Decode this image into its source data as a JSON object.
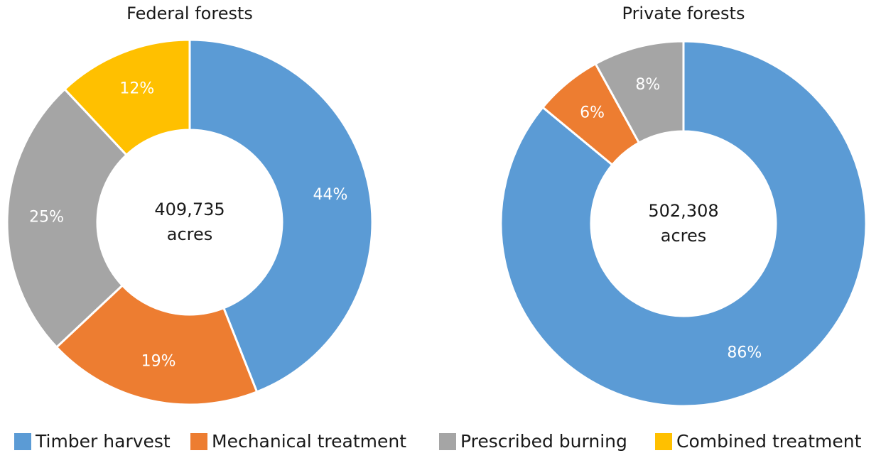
{
  "chart_data": [
    {
      "type": "pie",
      "title": "Federal forests",
      "center_text": "409,735",
      "center_unit": "acres",
      "categories": [
        "Timber harvest",
        "Mechanical treatment",
        "Prescribed burning",
        "Combined treatment"
      ],
      "values": [
        44,
        19,
        25,
        12
      ],
      "value_labels": [
        "44%",
        "19%",
        "25%",
        "12%"
      ],
      "colors": [
        "#5b9bd5",
        "#ed7d31",
        "#a5a5a5",
        "#ffc000"
      ]
    },
    {
      "type": "pie",
      "title": "Private forests",
      "center_text": "502,308",
      "center_unit": "acres",
      "categories": [
        "Timber harvest",
        "Mechanical treatment",
        "Prescribed burning"
      ],
      "values": [
        86,
        6,
        8
      ],
      "value_labels": [
        "86%",
        "6%",
        "8%"
      ],
      "colors": [
        "#5b9bd5",
        "#ed7d31",
        "#a5a5a5"
      ]
    }
  ]
}
